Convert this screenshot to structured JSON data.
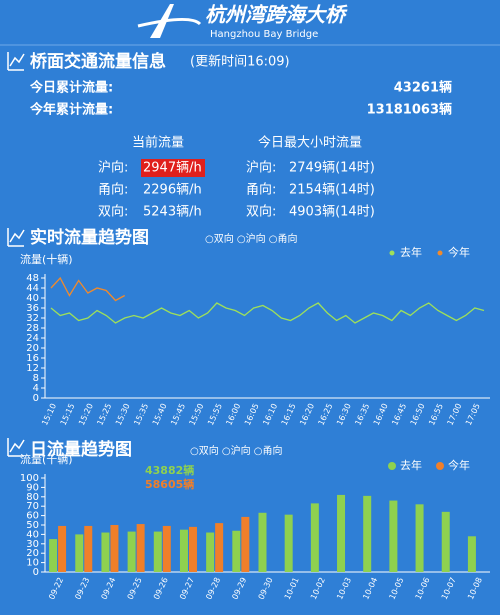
{
  "header": {
    "title": "杭州湾跨海大桥",
    "subtitle": "Hangzhou Bay Bridge"
  },
  "traffic_info": {
    "title": "桥面交通流量信息",
    "update_time": "(更新时间16:09)",
    "today_label": "今日累计流量:",
    "today_value": "43261辆",
    "year_label": "今年累计流量:",
    "year_value": "13181063辆",
    "current_header": "当前流量",
    "max_header": "今日最大小时流量",
    "rows": [
      {
        "direction": "沪向:",
        "current": "2947辆/h",
        "max_direction": "沪向:",
        "max": "2749辆(14时)"
      },
      {
        "direction": "甬向:",
        "current": "2296辆/h",
        "max_direction": "甬向:",
        "max": "2154辆(14时)"
      },
      {
        "direction": "双向:",
        "current": "5243辆/h",
        "max_direction": "双向:",
        "max": "4903辆(14时)"
      }
    ]
  },
  "chart_data": [
    {
      "type": "line",
      "title": "实时流量趋势图",
      "subtitle": "○双向 ○沪向 ○甬向",
      "ylabel": "流量(十辆)",
      "categories": [
        "15:10",
        null,
        "15:15",
        null,
        "15:20",
        null,
        "15:25",
        null,
        "15:30",
        null,
        "15:35",
        null,
        "15:40",
        null,
        "15:45",
        null,
        "15:50",
        null,
        "15:55",
        null,
        "16:00",
        null,
        "16:05",
        null,
        "16:10",
        null,
        "16:15",
        null,
        "16:20",
        null,
        "16:25",
        null,
        "16:30",
        null,
        "16:35",
        null,
        "16:40",
        null,
        "16:45",
        null,
        "16:50",
        null,
        "16:55",
        null,
        "17:00",
        null,
        "17:05",
        null
      ],
      "series": [
        {
          "name": "去年",
          "color": "#9ee05a",
          "values": [
            36,
            33,
            34,
            31,
            32,
            35,
            33,
            30,
            32,
            33,
            32,
            34,
            36,
            34,
            33,
            35,
            32,
            34,
            38,
            36,
            35,
            33,
            36,
            37,
            35,
            32,
            31,
            33,
            36,
            38,
            34,
            31,
            33,
            30,
            32,
            34,
            33,
            31,
            35,
            33,
            36,
            38,
            35,
            33,
            31,
            33,
            36,
            35
          ]
        },
        {
          "name": "今年",
          "color": "#f08a2c",
          "values": [
            44,
            48,
            41,
            47,
            42,
            44,
            43,
            39,
            41,
            null,
            null,
            null,
            null,
            null,
            null,
            null,
            null,
            null,
            null,
            null,
            null,
            null,
            null,
            null,
            null,
            null,
            null,
            null,
            null,
            null,
            null,
            null,
            null,
            null,
            null,
            null,
            null,
            null,
            null,
            null,
            null,
            null,
            null,
            null,
            null,
            null,
            null,
            null
          ]
        }
      ],
      "ylim": [
        0,
        48
      ],
      "yticks": [
        0,
        4,
        8,
        12,
        16,
        20,
        24,
        28,
        32,
        36,
        40,
        44,
        48
      ],
      "legend": "top-right"
    },
    {
      "type": "bar",
      "title": "日流量趋势图",
      "subtitle": "○双向 ○沪向 ○甬向",
      "ylabel": "流量(千辆)",
      "categories": [
        "09-22",
        "09-23",
        "09-24",
        "09-25",
        "09-26",
        "09-27",
        "09-28",
        "09-29",
        "09-30",
        "10-01",
        "10-02",
        "10-03",
        "10-04",
        "10-05",
        "10-06",
        "10-07",
        "10-08"
      ],
      "series": [
        {
          "name": "去年",
          "color": "#8fd14f",
          "values": [
            35,
            40,
            42,
            43,
            43,
            45,
            42,
            43.882,
            63,
            61,
            73,
            82,
            81,
            76,
            72,
            64,
            38
          ]
        },
        {
          "name": "今年",
          "color": "#f07f2a",
          "values": [
            49,
            49,
            50,
            51,
            49,
            48,
            52,
            58.605,
            null,
            null,
            null,
            null,
            null,
            null,
            null,
            null,
            null
          ]
        }
      ],
      "annotations": [
        "43882辆",
        "58605辆"
      ],
      "ylim": [
        0,
        100
      ],
      "yticks": [
        0,
        10,
        20,
        30,
        40,
        50,
        60,
        70,
        80,
        90,
        100
      ],
      "legend": "top-right"
    }
  ]
}
